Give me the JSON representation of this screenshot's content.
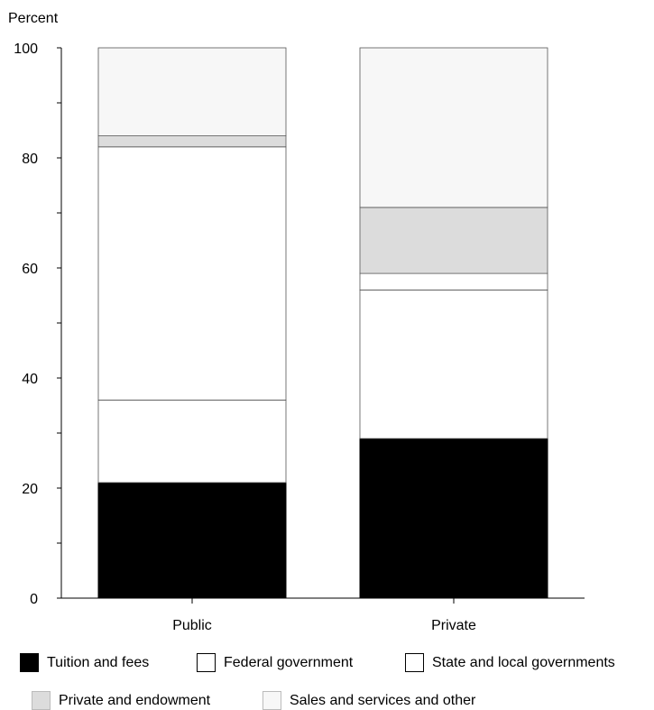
{
  "chart_data": {
    "type": "bar",
    "stacked": true,
    "ylabel": "Percent",
    "xlabel": "",
    "ylim": [
      0,
      100
    ],
    "yticks": [
      0,
      20,
      40,
      60,
      80,
      100
    ],
    "categories": [
      "Public",
      "Private"
    ],
    "series": [
      {
        "name": "Tuition and fees",
        "color": "#000000",
        "values": [
          21,
          29
        ]
      },
      {
        "name": "Federal government",
        "color": "#ffffff",
        "values": [
          15,
          27
        ]
      },
      {
        "name": "State and local governments",
        "color": "#ffffff",
        "values": [
          46,
          3
        ]
      },
      {
        "name": "Private and endowment",
        "color": "#dcdcdc",
        "values": [
          2,
          12
        ]
      },
      {
        "name": "Sales and services and other",
        "color": "#f7f7f7",
        "values": [
          16,
          29
        ]
      }
    ],
    "grid": false,
    "legend": "bottom"
  }
}
